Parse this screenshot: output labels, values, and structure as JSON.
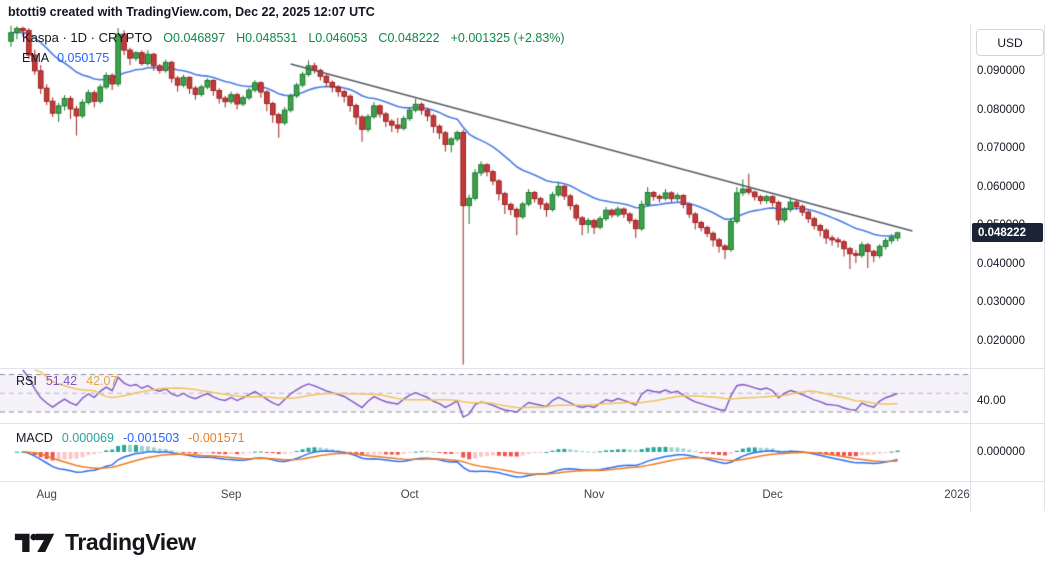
{
  "header": {
    "attribution": "btotti9 created with TradingView.com, Dec 22, 2025 12:07 UTC"
  },
  "legend": {
    "symbol": "Kaspa · 1D · CRYPTO",
    "open": "O0.046897",
    "high": "H0.048531",
    "low": "L0.046053",
    "close": "C0.048222",
    "change": "+0.001325 (+2.83%)",
    "ema_label": "EMA",
    "ema_value": "0.050175"
  },
  "rsi_legend": {
    "label": "RSI",
    "value": "51.42",
    "ma_value": "42.07",
    "axis_label": "40.00"
  },
  "macd_legend": {
    "label": "MACD",
    "hist_value": "0.000069",
    "macd_value": "-0.001503",
    "signal_value": "-0.001571",
    "axis_label": "0.000000"
  },
  "price_axis": {
    "currency": "USD",
    "ticks": [
      {
        "label": "0.090000",
        "value": 0.09
      },
      {
        "label": "0.080000",
        "value": 0.08
      },
      {
        "label": "0.070000",
        "value": 0.07
      },
      {
        "label": "0.060000",
        "value": 0.06
      },
      {
        "label": "0.050000",
        "value": 0.05
      },
      {
        "label": "0.040000",
        "value": 0.04
      },
      {
        "label": "0.030000",
        "value": 0.03
      },
      {
        "label": "0.020000",
        "value": 0.02
      }
    ],
    "last_price_label": "0.048222",
    "last_price_value": 0.048222
  },
  "time_axis": {
    "ticks": [
      {
        "label": "Aug",
        "index": 6
      },
      {
        "label": "Sep",
        "index": 37
      },
      {
        "label": "Oct",
        "index": 67
      },
      {
        "label": "Nov",
        "index": 98
      },
      {
        "label": "Dec",
        "index": 128
      },
      {
        "label": "2026",
        "index": 159
      }
    ]
  },
  "footer": {
    "brand": "TradingView"
  },
  "colors": {
    "up": "#3da24b",
    "up_border": "#1c7a30",
    "down": "#c23b3b",
    "down_border": "#9e2222",
    "ema": "#4a7de8",
    "trendline": "#555a64",
    "rsi": "#7e57c2",
    "rsi_ma": "#f0c35c",
    "rsi_band": "rgba(126,87,194,0.08)",
    "dash_strong": "#8a8e98",
    "dash_light": "#b6b9c2",
    "macd": "#2f6df6",
    "macd_signal": "#ef7d23",
    "hist_pos": "#26a69a",
    "hist_pos_weak": "#9fd4cd",
    "hist_neg": "#ef5350",
    "hist_neg_weak": "#f9c6c9",
    "badge_bg": "#1b2436"
  },
  "chart_data": {
    "type": "candlestick",
    "title": "Kaspa · 1D · CRYPTO, USD",
    "interval": "1D",
    "price_scale": 0.0001,
    "ylim": [
      0.0131,
      0.1022
    ],
    "legend_note": "last candle O/H/L/C = 0.046897/0.048531/0.046053/0.048222, change +0.001325 (+2.83%)",
    "indicators": {
      "ema_period": 20,
      "rsi_period": 14,
      "rsi_ma_period": 14,
      "macd": [
        12,
        26,
        9
      ]
    },
    "rsi_levels": [
      30,
      50,
      70
    ],
    "trendline": {
      "from_index": 47,
      "from_price": 0.0921,
      "to_index": 151.5,
      "to_price": 0.0487
    },
    "ohlc": [
      [
        980,
        1020,
        965,
        1002
      ],
      [
        1002,
        1019,
        985,
        1013
      ],
      [
        1013,
        1018,
        992,
        1008
      ],
      [
        1008,
        1014,
        934,
        944
      ],
      [
        944,
        958,
        893,
        903
      ],
      [
        903,
        918,
        843,
        858
      ],
      [
        858,
        868,
        814,
        824
      ],
      [
        824,
        834,
        783,
        793
      ],
      [
        793,
        820,
        770,
        812
      ],
      [
        812,
        840,
        800,
        831
      ],
      [
        831,
        838,
        778,
        804
      ],
      [
        804,
        812,
        735,
        786
      ],
      [
        786,
        829,
        780,
        821
      ],
      [
        821,
        854,
        815,
        846
      ],
      [
        846,
        852,
        808,
        824
      ],
      [
        824,
        868,
        818,
        861
      ],
      [
        861,
        899,
        855,
        891
      ],
      [
        891,
        897,
        853,
        869
      ],
      [
        869,
        1014,
        862,
        998
      ],
      [
        998,
        1008,
        944,
        957
      ],
      [
        957,
        963,
        918,
        936
      ],
      [
        936,
        954,
        928,
        950
      ],
      [
        950,
        956,
        916,
        922
      ],
      [
        922,
        957,
        916,
        946
      ],
      [
        946,
        950,
        903,
        916
      ],
      [
        916,
        921,
        896,
        904
      ],
      [
        904,
        932,
        898,
        925
      ],
      [
        925,
        929,
        872,
        884
      ],
      [
        884,
        890,
        849,
        866
      ],
      [
        866,
        893,
        860,
        886
      ],
      [
        886,
        889,
        843,
        858
      ],
      [
        858,
        864,
        828,
        842
      ],
      [
        842,
        867,
        836,
        861
      ],
      [
        861,
        884,
        855,
        878
      ],
      [
        878,
        881,
        838,
        852
      ],
      [
        852,
        858,
        818,
        832
      ],
      [
        832,
        838,
        808,
        823
      ],
      [
        823,
        849,
        817,
        841
      ],
      [
        841,
        846,
        803,
        817
      ],
      [
        817,
        839,
        811,
        833
      ],
      [
        833,
        859,
        827,
        853
      ],
      [
        853,
        879,
        847,
        872
      ],
      [
        872,
        876,
        833,
        848
      ],
      [
        848,
        853,
        798,
        818
      ],
      [
        818,
        823,
        768,
        789
      ],
      [
        789,
        794,
        729,
        768
      ],
      [
        768,
        809,
        762,
        801
      ],
      [
        801,
        844,
        795,
        838
      ],
      [
        838,
        872,
        832,
        866
      ],
      [
        866,
        901,
        860,
        894
      ],
      [
        894,
        930,
        888,
        916
      ],
      [
        916,
        924,
        896,
        904
      ],
      [
        904,
        909,
        878,
        889
      ],
      [
        889,
        894,
        862,
        873
      ],
      [
        873,
        878,
        847,
        861
      ],
      [
        861,
        866,
        836,
        849
      ],
      [
        849,
        854,
        821,
        837
      ],
      [
        837,
        842,
        797,
        813
      ],
      [
        813,
        818,
        763,
        783
      ],
      [
        783,
        788,
        719,
        751
      ],
      [
        751,
        791,
        744,
        784
      ],
      [
        784,
        822,
        778,
        812
      ],
      [
        812,
        816,
        781,
        791
      ],
      [
        791,
        796,
        757,
        772
      ],
      [
        772,
        777,
        744,
        762
      ],
      [
        762,
        781,
        742,
        754
      ],
      [
        754,
        786,
        748,
        779
      ],
      [
        779,
        808,
        773,
        801
      ],
      [
        801,
        831,
        795,
        816
      ],
      [
        816,
        821,
        789,
        801
      ],
      [
        801,
        806,
        772,
        786
      ],
      [
        786,
        791,
        742,
        759
      ],
      [
        759,
        764,
        726,
        742
      ],
      [
        742,
        747,
        693,
        712
      ],
      [
        712,
        731,
        691,
        726
      ],
      [
        726,
        748,
        719,
        743
      ],
      [
        743,
        750,
        140,
        553
      ],
      [
        553,
        582,
        505,
        572
      ],
      [
        572,
        648,
        566,
        638
      ],
      [
        638,
        668,
        630,
        659
      ],
      [
        659,
        663,
        629,
        641
      ],
      [
        641,
        646,
        606,
        617
      ],
      [
        617,
        622,
        566,
        584
      ],
      [
        584,
        589,
        531,
        556
      ],
      [
        556,
        561,
        528,
        543
      ],
      [
        543,
        548,
        476,
        524
      ],
      [
        524,
        563,
        518,
        557
      ],
      [
        557,
        596,
        551,
        587
      ],
      [
        587,
        591,
        561,
        571
      ],
      [
        571,
        576,
        544,
        557
      ],
      [
        557,
        562,
        524,
        543
      ],
      [
        543,
        589,
        537,
        581
      ],
      [
        581,
        614,
        575,
        603
      ],
      [
        603,
        607,
        568,
        578
      ],
      [
        578,
        583,
        541,
        553
      ],
      [
        553,
        558,
        513,
        521
      ],
      [
        521,
        526,
        476,
        504
      ],
      [
        504,
        521,
        481,
        514
      ],
      [
        514,
        519,
        479,
        497
      ],
      [
        497,
        526,
        491,
        519
      ],
      [
        519,
        549,
        513,
        541
      ],
      [
        541,
        545,
        521,
        529
      ],
      [
        529,
        551,
        523,
        544
      ],
      [
        544,
        548,
        521,
        531
      ],
      [
        531,
        536,
        506,
        514
      ],
      [
        514,
        519,
        469,
        493
      ],
      [
        493,
        566,
        487,
        556
      ],
      [
        556,
        601,
        550,
        587
      ],
      [
        587,
        591,
        566,
        577
      ],
      [
        577,
        582,
        561,
        572
      ],
      [
        572,
        596,
        566,
        586
      ],
      [
        586,
        590,
        561,
        571
      ],
      [
        571,
        586,
        563,
        579
      ],
      [
        579,
        583,
        546,
        556
      ],
      [
        556,
        561,
        521,
        531
      ],
      [
        531,
        536,
        491,
        509
      ],
      [
        509,
        514,
        486,
        496
      ],
      [
        496,
        501,
        471,
        481
      ],
      [
        481,
        486,
        446,
        464
      ],
      [
        464,
        469,
        431,
        448
      ],
      [
        448,
        453,
        414,
        439
      ],
      [
        439,
        521,
        433,
        512
      ],
      [
        512,
        601,
        506,
        586
      ],
      [
        586,
        621,
        578,
        596
      ],
      [
        596,
        636,
        581,
        588
      ],
      [
        588,
        592,
        566,
        576
      ],
      [
        576,
        581,
        556,
        566
      ],
      [
        566,
        581,
        558,
        576
      ],
      [
        576,
        580,
        551,
        561
      ],
      [
        561,
        566,
        503,
        516
      ],
      [
        516,
        549,
        509,
        543
      ],
      [
        543,
        573,
        536,
        562
      ],
      [
        562,
        568,
        541,
        551
      ],
      [
        551,
        556,
        526,
        536
      ],
      [
        536,
        541,
        508,
        519
      ],
      [
        519,
        524,
        491,
        501
      ],
      [
        501,
        506,
        473,
        489
      ],
      [
        489,
        494,
        453,
        469
      ],
      [
        469,
        476,
        449,
        464
      ],
      [
        464,
        471,
        444,
        459
      ],
      [
        459,
        464,
        421,
        441
      ],
      [
        441,
        446,
        388,
        428
      ],
      [
        428,
        438,
        404,
        424
      ],
      [
        424,
        459,
        417,
        451
      ],
      [
        451,
        456,
        391,
        434
      ],
      [
        434,
        439,
        406,
        423
      ],
      [
        423,
        453,
        416,
        447
      ],
      [
        447,
        469,
        439,
        462
      ],
      [
        462,
        479,
        454,
        471
      ],
      [
        468.97,
        485.31,
        460.53,
        482.22
      ]
    ]
  }
}
